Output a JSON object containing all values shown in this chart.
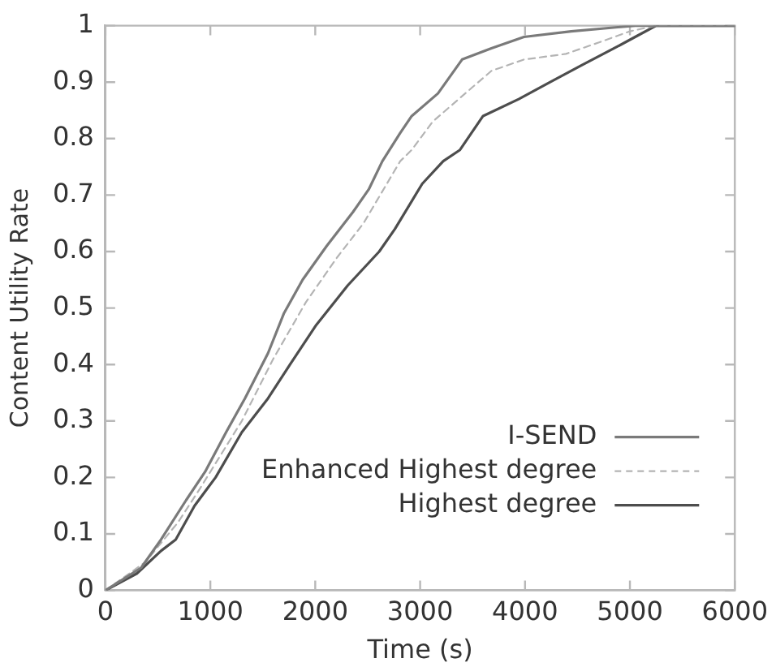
{
  "chart_data": {
    "type": "line",
    "xlabel": "Time (s)",
    "ylabel": "Content Utility Rate",
    "xlim": [
      0,
      6000
    ],
    "xticks": [
      0,
      1000,
      2000,
      3000,
      4000,
      5000,
      6000
    ],
    "ylim": [
      0,
      1
    ],
    "yticks": [
      0,
      0.1,
      0.2,
      0.3,
      0.4,
      0.5,
      0.6,
      0.7,
      0.8,
      0.9,
      1
    ],
    "legend": "bottom right",
    "marker": "none",
    "series": [
      {
        "name": "I-SEND",
        "color": "#7a7a7a",
        "line_style": "solid",
        "x": [
          0,
          340,
          530,
          770,
          950,
          1150,
          1330,
          1550,
          1700,
          1880,
          2110,
          2360,
          2510,
          2640,
          2810,
          2920,
          3170,
          3400,
          3680,
          3990,
          4440,
          5050,
          6000
        ],
        "values": [
          0,
          0.04,
          0.09,
          0.16,
          0.21,
          0.28,
          0.34,
          0.42,
          0.49,
          0.55,
          0.61,
          0.67,
          0.71,
          0.76,
          0.81,
          0.84,
          0.88,
          0.94,
          0.96,
          0.98,
          0.99,
          1,
          1
        ]
      },
      {
        "name": "Enhanced Highest degree",
        "color": "#b4b4b4",
        "line_style": "dashed",
        "x": [
          0,
          380,
          690,
          900,
          1300,
          1600,
          1910,
          2210,
          2460,
          2810,
          2920,
          3120,
          3430,
          3680,
          3990,
          4390,
          4700,
          5000,
          5250,
          6000
        ],
        "values": [
          0,
          0.05,
          0.12,
          0.18,
          0.3,
          0.41,
          0.51,
          0.59,
          0.65,
          0.76,
          0.78,
          0.83,
          0.88,
          0.92,
          0.94,
          0.95,
          0.97,
          0.99,
          1,
          1
        ]
      },
      {
        "name": "Highest degree",
        "color": "#4d4d4d",
        "line_style": "solid",
        "x": [
          0,
          300,
          530,
          670,
          850,
          1050,
          1300,
          1550,
          1760,
          2010,
          2310,
          2610,
          2760,
          3020,
          3220,
          3380,
          3600,
          3940,
          4240,
          4540,
          4850,
          5050,
          5250,
          6000
        ],
        "values": [
          0,
          0.03,
          0.07,
          0.09,
          0.15,
          0.2,
          0.28,
          0.34,
          0.4,
          0.47,
          0.54,
          0.6,
          0.64,
          0.72,
          0.76,
          0.78,
          0.84,
          0.87,
          0.9,
          0.93,
          0.96,
          0.98,
          1,
          1
        ]
      }
    ]
  }
}
